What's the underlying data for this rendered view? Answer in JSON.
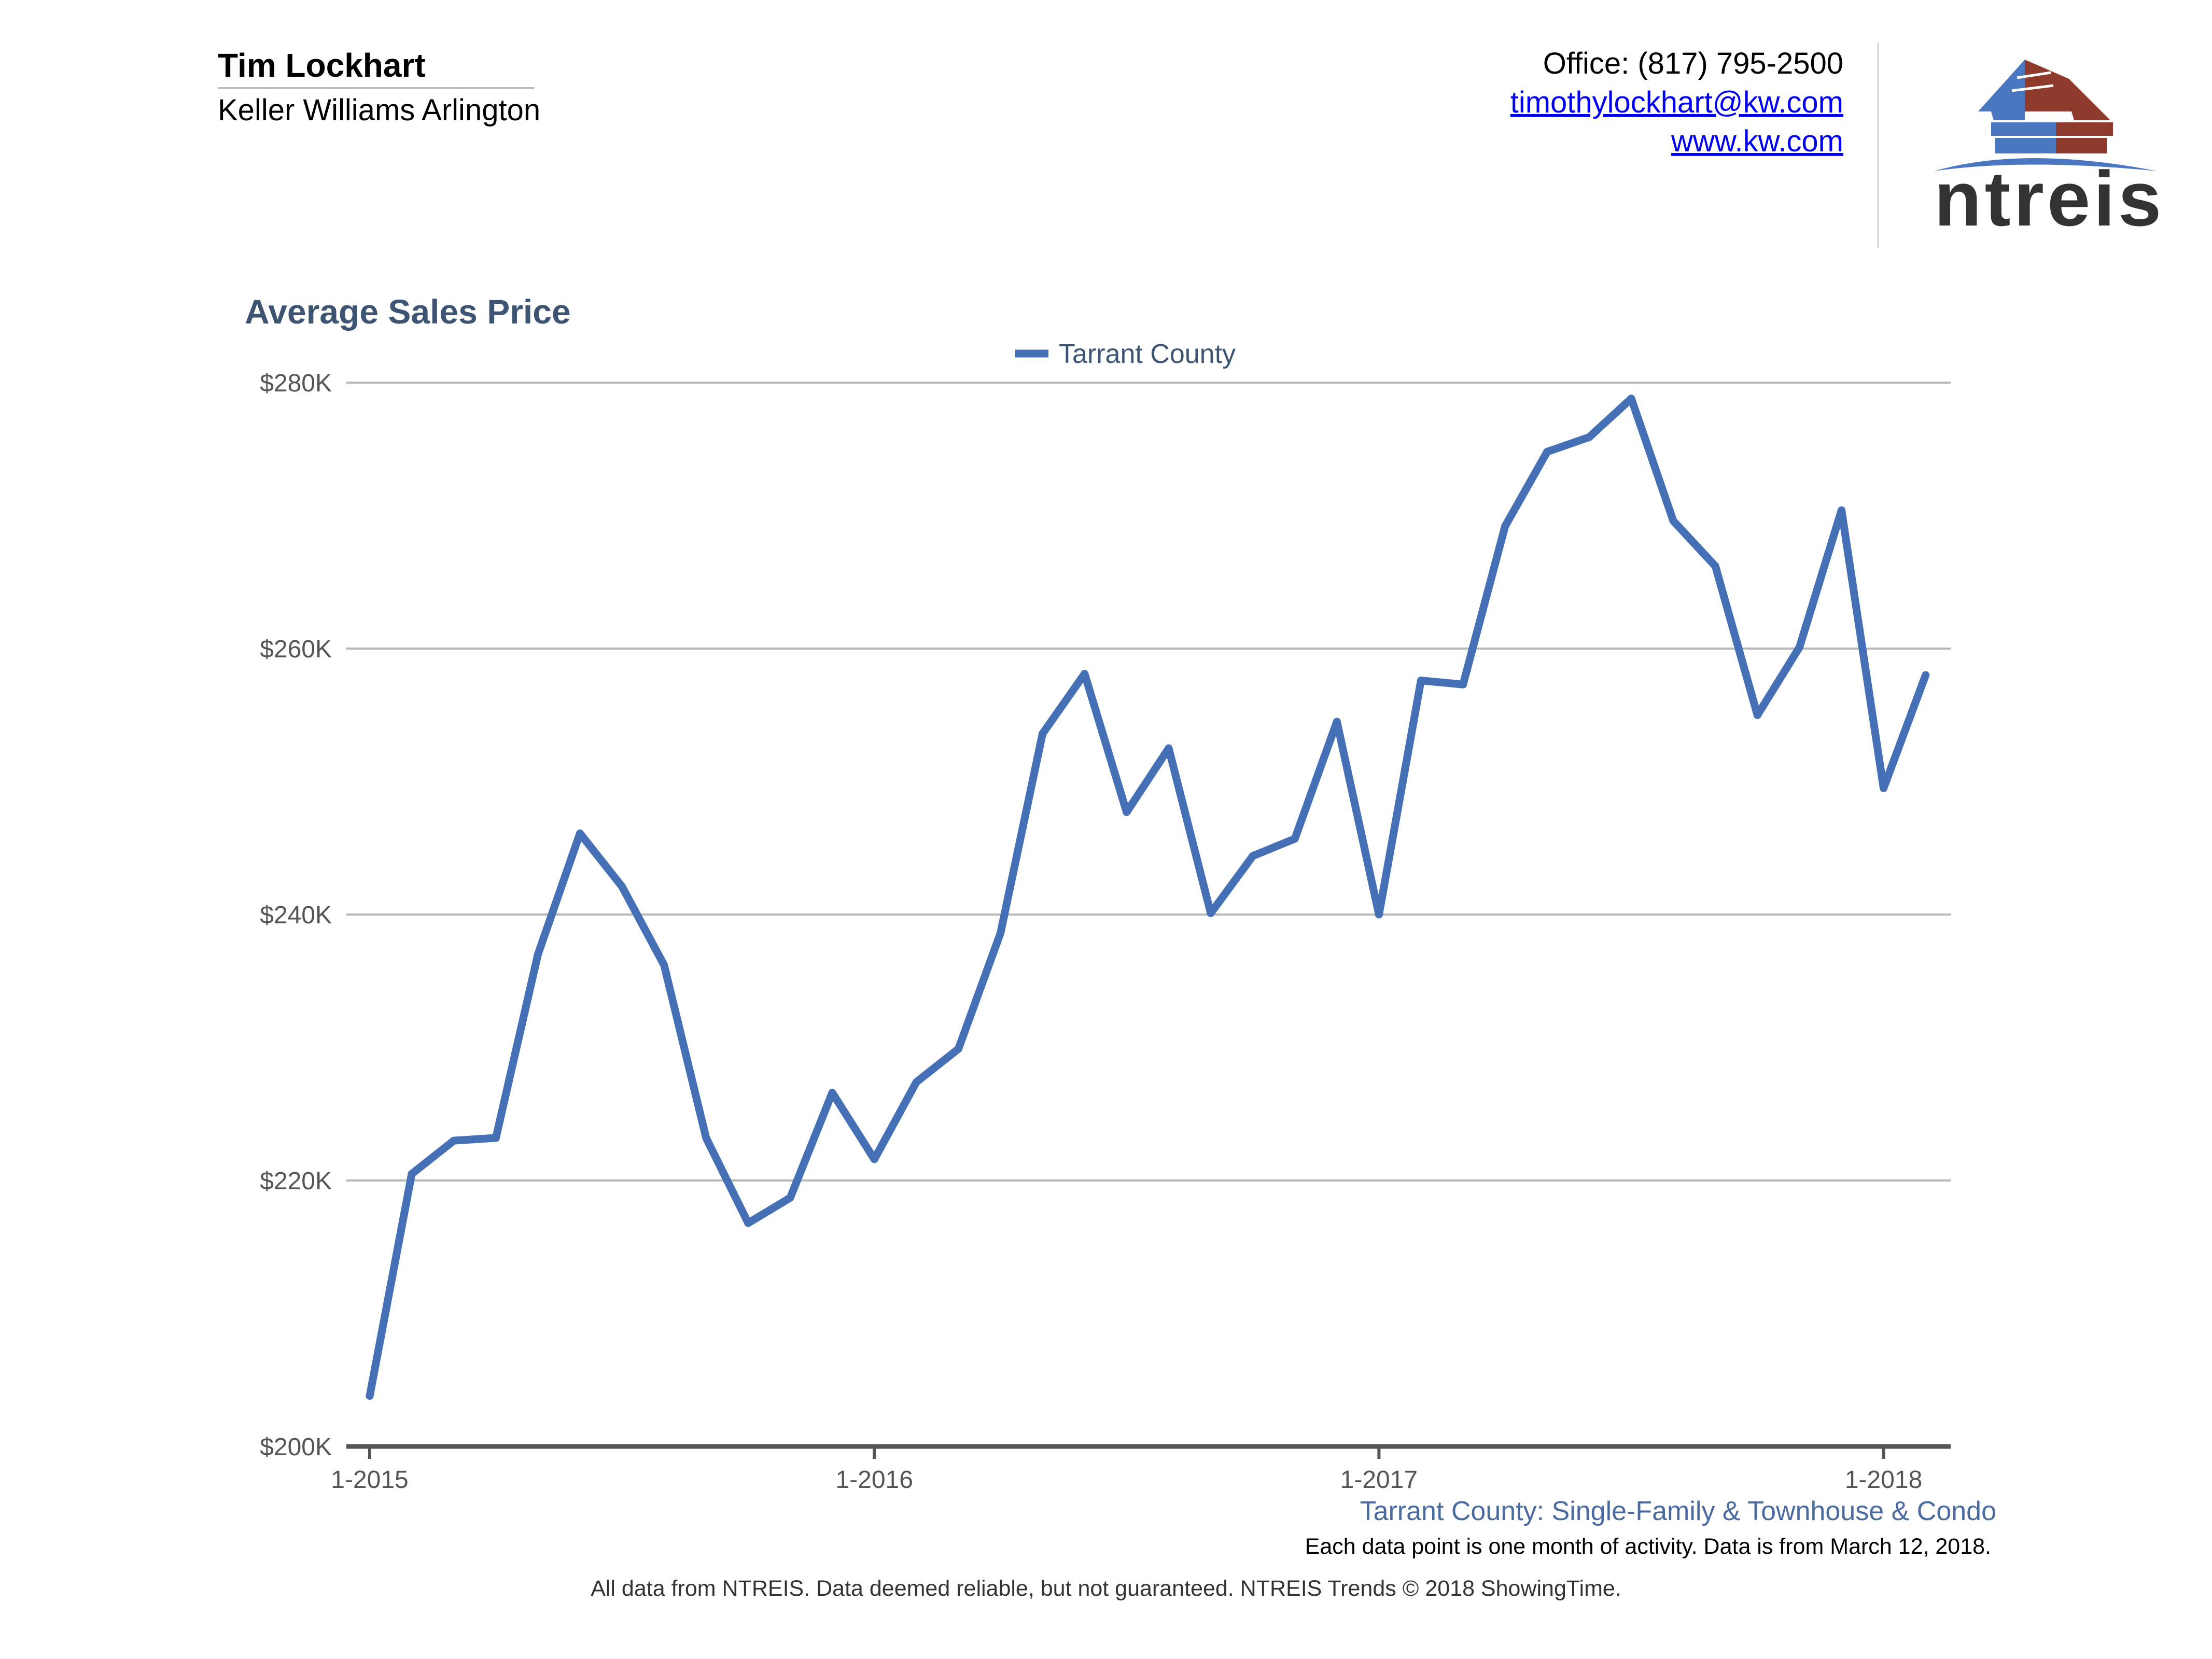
{
  "agent": {
    "name": "Tim Lockhart",
    "company": "Keller Williams Arlington"
  },
  "contact": {
    "office": "Office: (817) 795-2500",
    "email": "timothylockhart@kw.com",
    "website": "www.kw.com"
  },
  "logo": {
    "text": "ntreis"
  },
  "colors": {
    "series": "#4570b5",
    "title": "#3d5472",
    "grid": "#b8b8b8",
    "axis": "#555555",
    "caption": "#4a6aa0",
    "logo_blue": "#4a78c0",
    "logo_red": "#8e3a2c"
  },
  "footer": {
    "caption": "Tarrant County: Single-Family & Townhouse & Condo",
    "note": "Each data point is one month of activity. Data is from March 12, 2018.",
    "disclaimer": "All data from NTREIS. Data deemed reliable, but not guaranteed. NTREIS Trends © 2018 ShowingTime."
  },
  "chart_data": {
    "type": "line",
    "title": "Average Sales Price",
    "xlabel": "",
    "ylabel": "",
    "ylim": [
      200000,
      280000
    ],
    "yticks": [
      {
        "value": 200000,
        "label": "$200K"
      },
      {
        "value": 220000,
        "label": "$220K"
      },
      {
        "value": 240000,
        "label": "$240K"
      },
      {
        "value": 260000,
        "label": "$260K"
      },
      {
        "value": 280000,
        "label": "$280K"
      }
    ],
    "xticks": [
      {
        "index": 0,
        "label": "1-2015"
      },
      {
        "index": 12,
        "label": "1-2016"
      },
      {
        "index": 24,
        "label": "1-2017"
      },
      {
        "index": 36,
        "label": "1-2018"
      }
    ],
    "legend": "top-center",
    "grid": true,
    "x": [
      "1-2015",
      "2-2015",
      "3-2015",
      "4-2015",
      "5-2015",
      "6-2015",
      "7-2015",
      "8-2015",
      "9-2015",
      "10-2015",
      "11-2015",
      "12-2015",
      "1-2016",
      "2-2016",
      "3-2016",
      "4-2016",
      "5-2016",
      "6-2016",
      "7-2016",
      "8-2016",
      "9-2016",
      "10-2016",
      "11-2016",
      "12-2016",
      "1-2017",
      "2-2017",
      "3-2017",
      "4-2017",
      "5-2017",
      "6-2017",
      "7-2017",
      "8-2017",
      "9-2017",
      "10-2017",
      "11-2017",
      "12-2017",
      "1-2018",
      "2-2018"
    ],
    "series": [
      {
        "name": "Tarrant County",
        "values": [
          203800,
          220500,
          223000,
          223200,
          237000,
          246100,
          242100,
          236200,
          223200,
          216800,
          218700,
          226600,
          221600,
          227400,
          229900,
          238600,
          253600,
          258100,
          247700,
          252500,
          240100,
          244400,
          245700,
          254500,
          240000,
          257600,
          257300,
          269200,
          274800,
          275900,
          278800,
          269600,
          266200,
          255000,
          260100,
          270400,
          249500,
          258000
        ]
      }
    ]
  }
}
